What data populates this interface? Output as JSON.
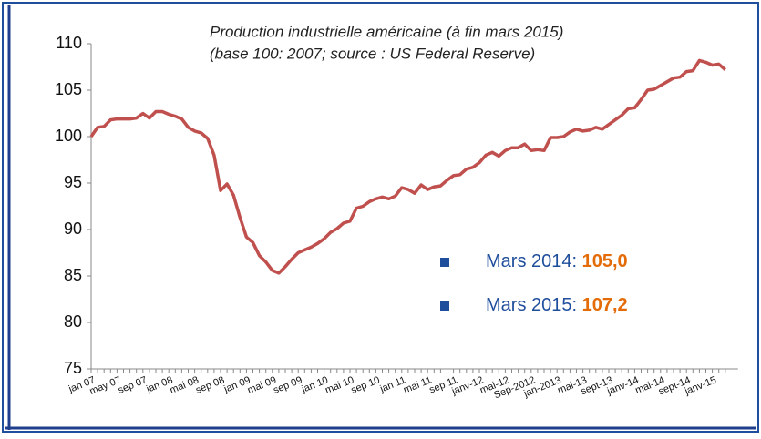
{
  "chart_data": {
    "type": "line",
    "title": [
      "Production industrielle américaine (à fin mars 2015)",
      "(base 100: 2007; source : US Federal Reserve)"
    ],
    "categories": [
      "jan 07",
      null,
      null,
      null,
      "may 07",
      null,
      null,
      null,
      "sep 07",
      null,
      null,
      null,
      "jan 08",
      null,
      null,
      null,
      "mai 08",
      null,
      null,
      null,
      "sep 08",
      null,
      null,
      null,
      "jan 09",
      null,
      null,
      null,
      "mai 09",
      null,
      null,
      null,
      "sep 09",
      null,
      null,
      null,
      "jan 10",
      null,
      null,
      null,
      "mai 10",
      null,
      null,
      null,
      "sep 10",
      null,
      null,
      null,
      "jan 11",
      null,
      null,
      null,
      "mai 11",
      null,
      null,
      null,
      "sep 11",
      null,
      null,
      null,
      "janv-12",
      null,
      null,
      null,
      "mai-12",
      null,
      null,
      null,
      "Sep-2012",
      null,
      null,
      null,
      "jan-2013",
      null,
      null,
      null,
      "mai-13",
      null,
      null,
      null,
      "sept-13",
      null,
      null,
      null,
      "janv-14",
      null,
      null,
      null,
      "mai-14",
      null,
      null,
      null,
      "sept-14",
      null,
      null,
      null,
      "janv-15",
      null,
      null
    ],
    "series": [
      {
        "color": "#c0504d",
        "values": [
          100.0,
          101.0,
          101.1,
          101.8,
          101.9,
          101.9,
          101.9,
          102.0,
          102.5,
          102.0,
          102.7,
          102.7,
          102.4,
          102.2,
          101.9,
          101.0,
          100.6,
          100.4,
          99.8,
          98.0,
          94.2,
          94.9,
          93.7,
          91.3,
          89.2,
          88.6,
          87.2,
          86.5,
          85.6,
          85.3,
          86.0,
          86.8,
          87.5,
          87.8,
          88.1,
          88.5,
          89.0,
          89.7,
          90.1,
          90.7,
          90.9,
          92.3,
          92.5,
          93.0,
          93.3,
          93.5,
          93.3,
          93.6,
          94.5,
          94.3,
          93.9,
          94.8,
          94.3,
          94.6,
          94.7,
          95.3,
          95.8,
          95.9,
          96.5,
          96.7,
          97.2,
          98.0,
          98.3,
          97.9,
          98.5,
          98.8,
          98.8,
          99.2,
          98.5,
          98.6,
          98.5,
          99.9,
          99.9,
          100.0,
          100.5,
          100.8,
          100.6,
          100.7,
          101.0,
          100.8,
          101.3,
          101.8,
          102.3,
          103.0,
          103.1,
          104.0,
          105.0,
          105.1,
          105.5,
          105.9,
          106.3,
          106.4,
          107.0,
          107.1,
          108.2,
          108.0,
          107.7,
          107.8,
          107.2
        ]
      }
    ],
    "ylim": [
      75,
      110
    ],
    "yticks": [
      75,
      80,
      85,
      90,
      95,
      100,
      105,
      110
    ],
    "annotations": [
      {
        "label": "Mars 2014: ",
        "value": "105,0"
      },
      {
        "label": "Mars 2015: ",
        "value": "107,2"
      }
    ]
  }
}
